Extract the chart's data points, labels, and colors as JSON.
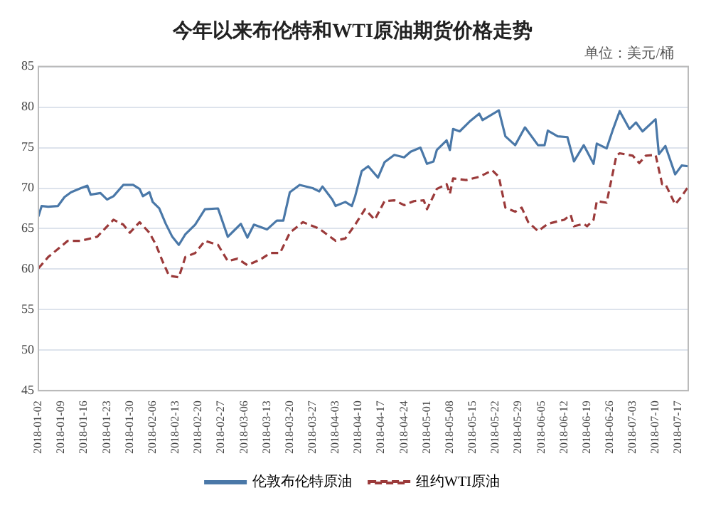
{
  "chart_data": {
    "type": "line",
    "title": "今年以来布伦特和WTI原油期货价格走势",
    "annotations": [
      "单位：美元/桶"
    ],
    "series": [
      {
        "name": "伦敦布伦特原油",
        "color": "#4a78a8",
        "line_style": "solid",
        "x": [
          "2018-01-02",
          "2018-01-03",
          "2018-01-05",
          "2018-01-08",
          "2018-01-10",
          "2018-01-12",
          "2018-01-15",
          "2018-01-17",
          "2018-01-18",
          "2018-01-21",
          "2018-01-23",
          "2018-01-25",
          "2018-01-28",
          "2018-01-31",
          "2018-02-02",
          "2018-02-03",
          "2018-02-05",
          "2018-02-06",
          "2018-02-08",
          "2018-02-10",
          "2018-02-12",
          "2018-02-14",
          "2018-02-16",
          "2018-02-19",
          "2018-02-22",
          "2018-02-26",
          "2018-03-01",
          "2018-03-03",
          "2018-03-05",
          "2018-03-07",
          "2018-03-09",
          "2018-03-13",
          "2018-03-16",
          "2018-03-18",
          "2018-03-20",
          "2018-03-23",
          "2018-03-27",
          "2018-03-29",
          "2018-03-30",
          "2018-04-02",
          "2018-04-03",
          "2018-04-06",
          "2018-04-08",
          "2018-04-09",
          "2018-04-11",
          "2018-04-13",
          "2018-04-16",
          "2018-04-18",
          "2018-04-21",
          "2018-04-24",
          "2018-04-26",
          "2018-04-29",
          "2018-05-01",
          "2018-05-03",
          "2018-05-04",
          "2018-05-07",
          "2018-05-08",
          "2018-05-09",
          "2018-05-11",
          "2018-05-14",
          "2018-05-17",
          "2018-05-18",
          "2018-05-23",
          "2018-05-25",
          "2018-05-28",
          "2018-05-31",
          "2018-06-04",
          "2018-06-06",
          "2018-06-07",
          "2018-06-10",
          "2018-06-13",
          "2018-06-15",
          "2018-06-18",
          "2018-06-21",
          "2018-06-22",
          "2018-06-25",
          "2018-06-27",
          "2018-06-29",
          "2018-07-02",
          "2018-07-04",
          "2018-07-06",
          "2018-07-10",
          "2018-07-11",
          "2018-07-13",
          "2018-07-16",
          "2018-07-18",
          "2018-07-20"
        ],
        "values": [
          66.5,
          67.8,
          67.7,
          67.8,
          68.9,
          69.5,
          70.0,
          70.3,
          69.2,
          69.4,
          68.6,
          69.0,
          70.4,
          70.4,
          69.9,
          69.0,
          69.5,
          68.3,
          67.5,
          65.6,
          64.0,
          63.0,
          64.3,
          65.5,
          67.4,
          67.5,
          64.0,
          64.8,
          65.6,
          63.9,
          65.5,
          64.9,
          66.0,
          66.0,
          69.5,
          70.4,
          70.0,
          69.6,
          70.2,
          68.6,
          67.8,
          68.3,
          67.8,
          69.0,
          72.1,
          72.7,
          71.3,
          73.2,
          74.1,
          73.8,
          74.5,
          75.0,
          73.0,
          73.3,
          74.7,
          75.9,
          74.7,
          77.3,
          77.0,
          78.2,
          79.2,
          78.4,
          79.6,
          76.4,
          75.3,
          77.5,
          75.3,
          75.3,
          77.1,
          76.4,
          76.3,
          73.3,
          75.3,
          73.0,
          75.5,
          74.9,
          77.3,
          79.5,
          77.3,
          78.1,
          77.0,
          78.5,
          74.2,
          75.2,
          71.7,
          72.8,
          72.7
        ]
      },
      {
        "name": "纽约WTI原油",
        "color": "#9b3a3a",
        "line_style": "dashed",
        "x": [
          "2018-01-02",
          "2018-01-05",
          "2018-01-08",
          "2018-01-11",
          "2018-01-15",
          "2018-01-20",
          "2018-01-25",
          "2018-01-28",
          "2018-01-30",
          "2018-02-02",
          "2018-02-05",
          "2018-02-07",
          "2018-02-09",
          "2018-02-11",
          "2018-02-14",
          "2018-02-16",
          "2018-02-19",
          "2018-02-22",
          "2018-02-26",
          "2018-03-01",
          "2018-03-04",
          "2018-03-07",
          "2018-03-11",
          "2018-03-14",
          "2018-03-17",
          "2018-03-20",
          "2018-03-24",
          "2018-03-29",
          "2018-04-03",
          "2018-04-06",
          "2018-04-09",
          "2018-04-12",
          "2018-04-15",
          "2018-04-18",
          "2018-04-21",
          "2018-04-24",
          "2018-04-27",
          "2018-04-30",
          "2018-05-01",
          "2018-05-04",
          "2018-05-07",
          "2018-05-08",
          "2018-05-09",
          "2018-05-13",
          "2018-05-17",
          "2018-05-21",
          "2018-05-23",
          "2018-05-25",
          "2018-05-28",
          "2018-05-30",
          "2018-06-01",
          "2018-06-04",
          "2018-06-07",
          "2018-06-12",
          "2018-06-14",
          "2018-06-15",
          "2018-06-18",
          "2018-06-19",
          "2018-06-21",
          "2018-06-22",
          "2018-06-25",
          "2018-06-28",
          "2018-06-29",
          "2018-07-03",
          "2018-07-05",
          "2018-07-07",
          "2018-07-10",
          "2018-07-12",
          "2018-07-13",
          "2018-07-16",
          "2018-07-18",
          "2018-07-20"
        ],
        "values": [
          60.1,
          61.5,
          62.5,
          63.5,
          63.5,
          64.0,
          66.1,
          65.5,
          64.5,
          65.8,
          64.5,
          63.0,
          61.0,
          59.2,
          59.0,
          61.5,
          62.0,
          63.5,
          63.0,
          61.0,
          61.3,
          60.5,
          61.2,
          62.0,
          62.0,
          64.5,
          65.8,
          65.0,
          63.5,
          63.8,
          65.5,
          67.4,
          66.1,
          68.4,
          68.5,
          67.9,
          68.4,
          68.5,
          67.4,
          69.9,
          70.5,
          69.3,
          71.2,
          71.0,
          71.4,
          72.2,
          71.4,
          67.6,
          67.1,
          67.6,
          65.8,
          64.7,
          65.6,
          66.1,
          66.7,
          65.3,
          65.6,
          65.3,
          66.1,
          68.4,
          68.2,
          74.0,
          74.3,
          74.0,
          73.1,
          74.0,
          74.1,
          70.5,
          70.5,
          68.0,
          69.0,
          70.2
        ]
      }
    ],
    "xlim": [
      "2018-01-02",
      "2018-07-20"
    ],
    "xticks": [
      "2018-01-02",
      "2018-01-09",
      "2018-01-16",
      "2018-01-23",
      "2018-01-30",
      "2018-02-06",
      "2018-02-13",
      "2018-02-20",
      "2018-02-27",
      "2018-03-06",
      "2018-03-13",
      "2018-03-20",
      "2018-03-27",
      "2018-04-03",
      "2018-04-10",
      "2018-04-17",
      "2018-04-24",
      "2018-05-01",
      "2018-05-08",
      "2018-05-15",
      "2018-05-22",
      "2018-05-29",
      "2018-06-05",
      "2018-06-12",
      "2018-06-19",
      "2018-06-26",
      "2018-07-03",
      "2018-07-10",
      "2018-07-17"
    ],
    "ylim": [
      45,
      85
    ],
    "yticks": [
      45,
      50,
      55,
      60,
      65,
      70,
      75,
      80,
      85
    ],
    "grid": "y",
    "legend": "bottom",
    "marker": "none"
  }
}
